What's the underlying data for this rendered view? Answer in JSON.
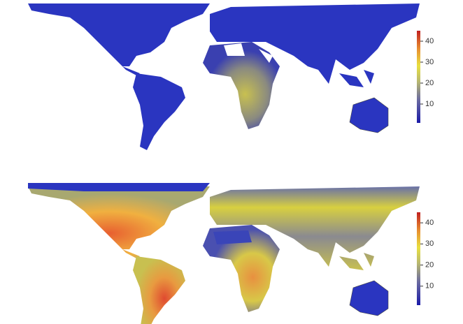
{
  "maps": [
    {
      "colorbar": {
        "range": [
          1,
          45
        ],
        "ticks": [
          10,
          20,
          30,
          40
        ]
      }
    },
    {
      "colorbar": {
        "range": [
          1,
          45
        ],
        "ticks": [
          10,
          20,
          30,
          40
        ]
      }
    }
  ]
}
